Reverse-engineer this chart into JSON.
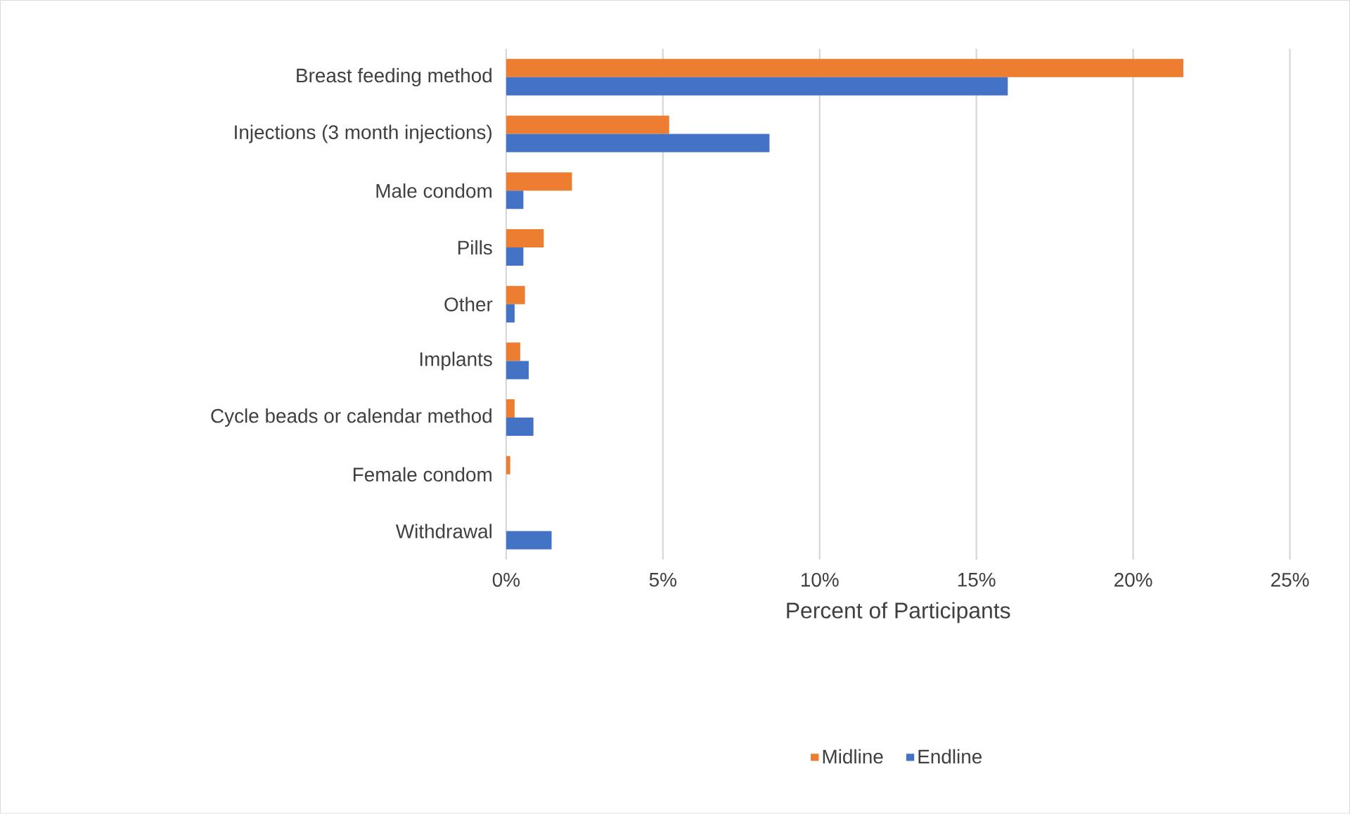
{
  "chart_data": {
    "type": "bar",
    "orientation": "horizontal",
    "xlabel": "Percent of Participants",
    "categories": [
      "Breast feeding method",
      "Injections (3 month injections)",
      "Male condom",
      "Pills",
      "Other",
      "Implants",
      "Cycle beads or calendar method",
      "Female condom",
      "Withdrawal"
    ],
    "series": [
      {
        "name": "Midline",
        "color": "#ed7d31",
        "values": [
          21.6,
          5.2,
          2.1,
          1.2,
          0.6,
          0.45,
          0.27,
          0.13,
          0
        ]
      },
      {
        "name": "Endline",
        "color": "#4472c4",
        "values": [
          16.0,
          8.4,
          0.55,
          0.55,
          0.27,
          0.72,
          0.87,
          0,
          1.45
        ]
      }
    ],
    "xlim": [
      0,
      25
    ],
    "xticks": [
      {
        "value": 0,
        "label": "0%"
      },
      {
        "value": 5,
        "label": "5%"
      },
      {
        "value": 10,
        "label": "10%"
      },
      {
        "value": 15,
        "label": "15%"
      },
      {
        "value": 20,
        "label": "20%"
      },
      {
        "value": 25,
        "label": "25%"
      }
    ],
    "grid": "x",
    "legend": "bottom"
  }
}
